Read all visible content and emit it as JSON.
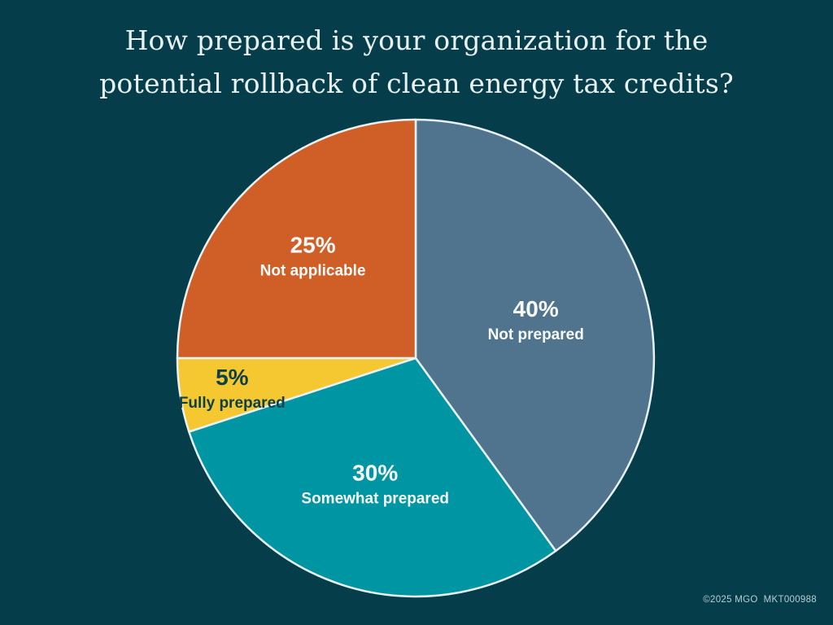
{
  "background_color": "#053d4a",
  "title": {
    "text": "How prepared is your organization for the potential rollback of clean energy tax credits?",
    "color": "#e9f1f1"
  },
  "footer": {
    "text": "©2025 MGO  MKT000988",
    "color": "#b7d0d6"
  },
  "chart_data": {
    "type": "pie",
    "title": "How prepared is your organization for the potential rollback of clean energy tax credits?",
    "start_angle_deg": 0,
    "direction": "clockwise",
    "stroke_color": "#e8f2f3",
    "slices": [
      {
        "label": "Not prepared",
        "value": 40,
        "value_label": "40%",
        "color": "#51748e",
        "label_color": "#f8fbfb"
      },
      {
        "label": "Somewhat prepared",
        "value": 30,
        "value_label": "30%",
        "color": "#0095a3",
        "label_color": "#f8fbfb"
      },
      {
        "label": "Fully prepared",
        "value": 5,
        "value_label": "5%",
        "color": "#f5c832",
        "label_color": "#0d4049"
      },
      {
        "label": "Not applicable",
        "value": 25,
        "value_label": "25%",
        "color": "#d05f27",
        "label_color": "#f8fbfb"
      }
    ]
  }
}
